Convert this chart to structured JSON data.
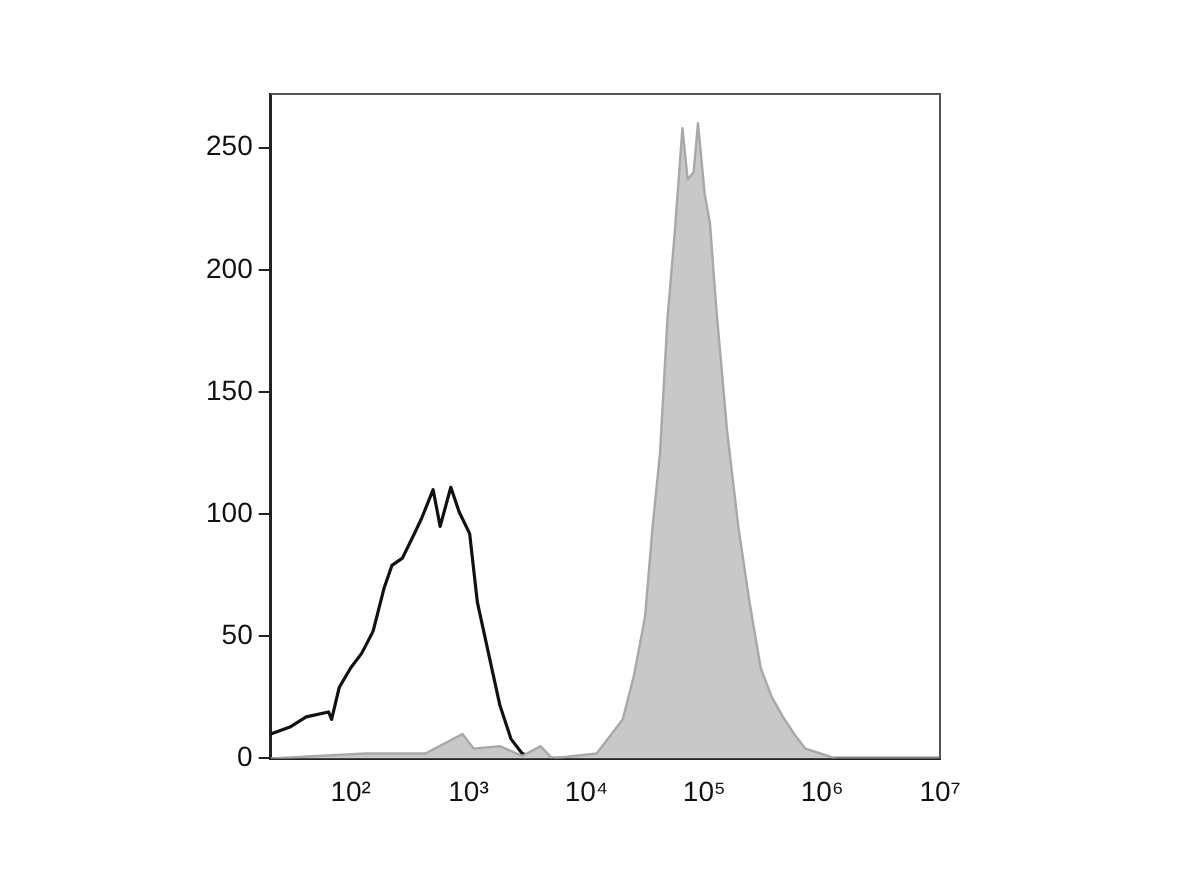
{
  "chart_data": {
    "type": "line",
    "log": "x",
    "xlim": [
      21,
      10000000
    ],
    "ylim": [
      0,
      272
    ],
    "xticks": [
      {
        "value": 100,
        "label": "10²"
      },
      {
        "value": 1000,
        "label": "10³"
      },
      {
        "value": 10000,
        "label": "10⁴"
      },
      {
        "value": 100000,
        "label": "10⁵"
      },
      {
        "value": 1000000,
        "label": "10⁶"
      },
      {
        "value": 10000000,
        "label": "10⁷"
      }
    ],
    "yticks": [
      0,
      50,
      100,
      150,
      200,
      250
    ],
    "grid": false,
    "legend": false,
    "marker": "none",
    "series": [
      {
        "type": "area",
        "color": "#c8c8c8",
        "x": [
          21,
          134,
          430,
          889,
          1107,
          1841,
          2851,
          4102,
          5105,
          12220,
          16370,
          20370,
          25350,
          31480,
          36480,
          42170,
          48750,
          56360,
          65310,
          72280,
          81280,
          88510,
          100900,
          111900,
          125600,
          156300,
          194500,
          242100,
          301300,
          375000,
          465600,
          579400,
          721100,
          966000,
          1291000,
          10000000
        ],
        "values": [
          0,
          2,
          2,
          10,
          4,
          5,
          1,
          5,
          0,
          2,
          10,
          16,
          34,
          58,
          95,
          125,
          180,
          216,
          258,
          237,
          240,
          260,
          231,
          219,
          186,
          134,
          95,
          64,
          37,
          25,
          17,
          10,
          4,
          2,
          0,
          0
        ]
      },
      {
        "color": "#111111",
        "x": [
          21,
          31,
          42,
          65,
          69,
          80,
          100,
          124,
          155,
          193,
          224,
          275,
          347,
          398,
          501,
          575,
          708,
          832,
          1023,
          1189,
          1479,
          1841,
          2291,
          2851,
          3802,
          10000000
        ],
        "values": [
          10,
          13,
          17,
          19,
          16,
          29,
          37,
          43,
          52,
          70,
          79,
          82,
          92,
          98,
          110,
          95,
          111,
          101,
          92,
          64,
          43,
          22,
          8,
          2,
          0,
          0
        ]
      }
    ]
  }
}
